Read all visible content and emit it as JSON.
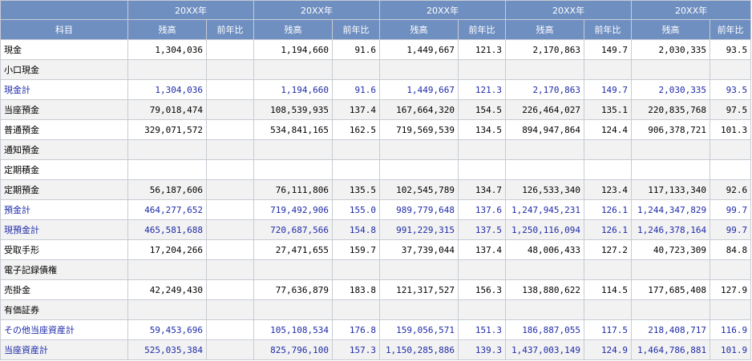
{
  "table": {
    "corner_label": "科目",
    "year_labels": [
      "20XX年",
      "20XX年",
      "20XX年",
      "20XX年",
      "20XX年"
    ],
    "sub_headers": [
      "残高",
      "前年比",
      "残高",
      "前年比",
      "残高",
      "前年比",
      "残高",
      "前年比",
      "残高",
      "前年比"
    ],
    "rows": [
      {
        "label": "現金",
        "total": false,
        "cells": [
          "1,304,036",
          "",
          "1,194,660",
          "91.6",
          "1,449,667",
          "121.3",
          "2,170,863",
          "149.7",
          "2,030,335",
          "93.5"
        ]
      },
      {
        "label": "小口現金",
        "total": false,
        "cells": [
          "",
          "",
          "",
          "",
          "",
          "",
          "",
          "",
          "",
          ""
        ]
      },
      {
        "label": "現金計",
        "total": true,
        "cells": [
          "1,304,036",
          "",
          "1,194,660",
          "91.6",
          "1,449,667",
          "121.3",
          "2,170,863",
          "149.7",
          "2,030,335",
          "93.5"
        ]
      },
      {
        "label": "当座預金",
        "total": false,
        "cells": [
          "79,018,474",
          "",
          "108,539,935",
          "137.4",
          "167,664,320",
          "154.5",
          "226,464,027",
          "135.1",
          "220,835,768",
          "97.5"
        ]
      },
      {
        "label": "普通預金",
        "total": false,
        "cells": [
          "329,071,572",
          "",
          "534,841,165",
          "162.5",
          "719,569,539",
          "134.5",
          "894,947,864",
          "124.4",
          "906,378,721",
          "101.3"
        ]
      },
      {
        "label": "通知預金",
        "total": false,
        "cells": [
          "",
          "",
          "",
          "",
          "",
          "",
          "",
          "",
          "",
          ""
        ]
      },
      {
        "label": "定期積金",
        "total": false,
        "cells": [
          "",
          "",
          "",
          "",
          "",
          "",
          "",
          "",
          "",
          ""
        ]
      },
      {
        "label": "定期預金",
        "total": false,
        "cells": [
          "56,187,606",
          "",
          "76,111,806",
          "135.5",
          "102,545,789",
          "134.7",
          "126,533,340",
          "123.4",
          "117,133,340",
          "92.6"
        ]
      },
      {
        "label": "預金計",
        "total": true,
        "cells": [
          "464,277,652",
          "",
          "719,492,906",
          "155.0",
          "989,779,648",
          "137.6",
          "1,247,945,231",
          "126.1",
          "1,244,347,829",
          "99.7"
        ]
      },
      {
        "label": "現預金計",
        "total": true,
        "cells": [
          "465,581,688",
          "",
          "720,687,566",
          "154.8",
          "991,229,315",
          "137.5",
          "1,250,116,094",
          "126.1",
          "1,246,378,164",
          "99.7"
        ]
      },
      {
        "label": "受取手形",
        "total": false,
        "cells": [
          "17,204,266",
          "",
          "27,471,655",
          "159.7",
          "37,739,044",
          "137.4",
          "48,006,433",
          "127.2",
          "40,723,309",
          "84.8"
        ]
      },
      {
        "label": "電子記録債権",
        "total": false,
        "cells": [
          "",
          "",
          "",
          "",
          "",
          "",
          "",
          "",
          "",
          ""
        ]
      },
      {
        "label": "売掛金",
        "total": false,
        "cells": [
          "42,249,430",
          "",
          "77,636,879",
          "183.8",
          "121,317,527",
          "156.3",
          "138,880,622",
          "114.5",
          "177,685,408",
          "127.9"
        ]
      },
      {
        "label": "有価証券",
        "total": false,
        "cells": [
          "",
          "",
          "",
          "",
          "",
          "",
          "",
          "",
          "",
          ""
        ]
      },
      {
        "label": "その他当座資産計",
        "total": true,
        "cells": [
          "59,453,696",
          "",
          "105,108,534",
          "176.8",
          "159,056,571",
          "151.3",
          "186,887,055",
          "117.5",
          "218,408,717",
          "116.9"
        ]
      },
      {
        "label": "当座資産計",
        "total": true,
        "cells": [
          "525,035,384",
          "",
          "825,796,100",
          "157.3",
          "1,150,285,886",
          "139.3",
          "1,437,003,149",
          "124.9",
          "1,464,786,881",
          "101.9"
        ]
      }
    ]
  },
  "colors": {
    "header_bg": "#6f8fc1",
    "total_text": "#1e2aa8",
    "stripe": "#f2f2f2",
    "border": "#c7ccd3"
  }
}
